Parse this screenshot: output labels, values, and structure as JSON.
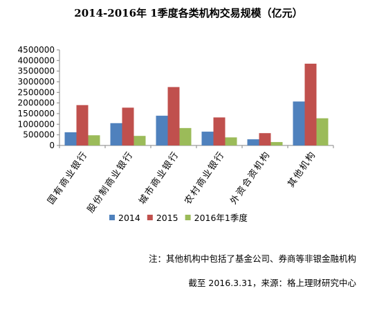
{
  "chart_data": {
    "type": "bar",
    "title": "2014-2016年 1季度各类机构交易规模（亿元）",
    "categories": [
      "国有商业银行",
      "股份制商业银行",
      "城市商业银行",
      "农村商业银行",
      "外资合资机构",
      "其他机构"
    ],
    "series": [
      {
        "name": "2014",
        "color": "#4f81bd",
        "values": [
          620000,
          1050000,
          1400000,
          650000,
          290000,
          2070000
        ]
      },
      {
        "name": "2015",
        "color": "#c0504d",
        "values": [
          1900000,
          1780000,
          2750000,
          1320000,
          580000,
          3850000
        ]
      },
      {
        "name": "2016年1季度",
        "color": "#9bbb59",
        "values": [
          480000,
          450000,
          820000,
          380000,
          160000,
          1280000
        ]
      }
    ],
    "ylim": [
      0,
      4500000
    ],
    "yticks": [
      "0",
      "500000",
      "1000000",
      "1500000",
      "2000000",
      "2500000",
      "3000000",
      "3500000",
      "4000000",
      "4500000"
    ],
    "grid": false,
    "legend_position": "bottom"
  },
  "notes": {
    "note1": "注：其他机构中包括了基金公司、券商等非银金融机构",
    "note2": "截至 2016.3.31，来源：格上理财研究中心"
  }
}
